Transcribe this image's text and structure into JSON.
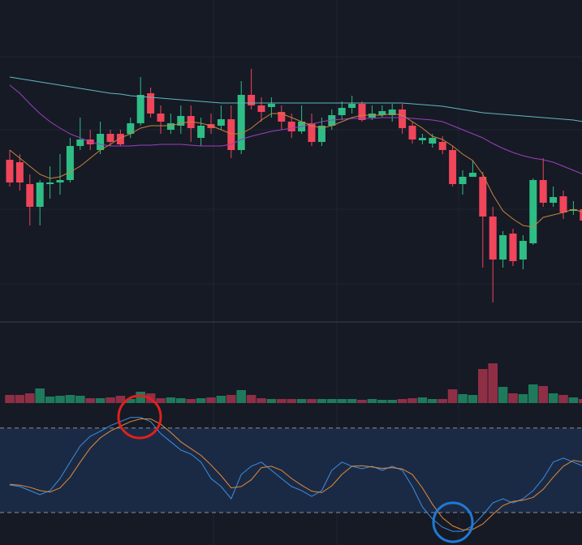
{
  "chart_data": [
    {
      "type": "candlestick",
      "ylim": [
        3,
        400
      ],
      "grid": true,
      "up_color": "#2ebd85",
      "down_color": "#f0455a",
      "open": [
        203,
        200,
        173,
        145,
        173,
        175,
        178,
        220,
        228,
        215,
        235,
        235,
        235,
        248,
        285,
        260,
        240,
        245,
        257,
        230,
        247,
        245,
        253,
        215,
        283,
        270,
        268,
        262,
        250,
        238,
        248,
        225,
        245,
        258,
        267,
        272,
        255,
        258,
        258,
        265,
        245,
        227,
        223,
        225,
        215,
        173,
        182,
        182,
        133,
        80,
        112,
        80,
        100,
        178,
        150,
        158,
        140,
        142
      ],
      "high": [
        215,
        210,
        185,
        178,
        195,
        210,
        230,
        255,
        240,
        250,
        240,
        240,
        255,
        305,
        292,
        270,
        260,
        270,
        270,
        255,
        260,
        270,
        270,
        300,
        315,
        280,
        280,
        270,
        260,
        270,
        260,
        255,
        265,
        275,
        282,
        275,
        270,
        270,
        272,
        272,
        250,
        235,
        235,
        232,
        220,
        190,
        202,
        188,
        145,
        115,
        118,
        110,
        180,
        205,
        170,
        165,
        152,
        152
      ],
      "low": [
        170,
        165,
        122,
        122,
        155,
        160,
        175,
        215,
        215,
        210,
        220,
        220,
        230,
        245,
        255,
        235,
        235,
        235,
        225,
        220,
        235,
        240,
        205,
        210,
        265,
        250,
        255,
        240,
        230,
        235,
        220,
        220,
        240,
        252,
        260,
        250,
        252,
        255,
        250,
        235,
        223,
        222,
        218,
        210,
        170,
        160,
        182,
        70,
        27,
        70,
        72,
        68,
        98,
        145,
        145,
        130,
        135,
        122
      ],
      "close": [
        175,
        175,
        145,
        175,
        175,
        178,
        220,
        228,
        222,
        235,
        225,
        222,
        248,
        283,
        260,
        250,
        248,
        257,
        242,
        245,
        242,
        253,
        215,
        283,
        270,
        262,
        272,
        250,
        238,
        250,
        225,
        245,
        258,
        267,
        272,
        252,
        260,
        263,
        265,
        242,
        228,
        230,
        230,
        215,
        173,
        182,
        187,
        133,
        80,
        110,
        78,
        103,
        178,
        150,
        157,
        138,
        142,
        128
      ],
      "series": [
        {
          "color": "#5fb8c2",
          "values": [
            305,
            303,
            301,
            299,
            297,
            295,
            293,
            291,
            289,
            287,
            285,
            284,
            282,
            281,
            280,
            279,
            278,
            277,
            276,
            275,
            274,
            273,
            273,
            273,
            273,
            273,
            273,
            273,
            273,
            273,
            273,
            273,
            273,
            273,
            273,
            273,
            273,
            273,
            273,
            273,
            272,
            271,
            270,
            269,
            267,
            265,
            263,
            261,
            260,
            259,
            258,
            257,
            256,
            255,
            254,
            253,
            252,
            250
          ]
        },
        {
          "color": "#9c3fc0",
          "values": [
            295,
            285,
            272,
            260,
            250,
            242,
            235,
            230,
            225,
            222,
            220,
            220,
            220,
            221,
            221,
            222,
            222,
            222,
            221,
            220,
            220,
            220,
            222,
            228,
            232,
            235,
            238,
            240,
            242,
            244,
            247,
            250,
            252,
            253,
            254,
            254,
            254,
            255,
            255,
            255,
            254,
            253,
            252,
            250,
            245,
            240,
            235,
            230,
            223,
            217,
            212,
            208,
            205,
            203,
            200,
            195,
            190,
            185
          ]
        },
        {
          "color": "#c8843a",
          "values": [
            215,
            205,
            195,
            185,
            180,
            182,
            188,
            195,
            205,
            215,
            222,
            230,
            235,
            242,
            245,
            245,
            245,
            248,
            250,
            248,
            245,
            240,
            235,
            235,
            242,
            252,
            260,
            260,
            255,
            250,
            245,
            242,
            245,
            250,
            255,
            258,
            258,
            258,
            260,
            258,
            250,
            242,
            232,
            228,
            220,
            210,
            202,
            185,
            160,
            140,
            130,
            122,
            120,
            132,
            135,
            138,
            142,
            138
          ]
        }
      ]
    },
    {
      "type": "bar",
      "ylim": [
        0,
        50
      ],
      "up_color": "#1f7a5c",
      "down_color": "#8e2f46",
      "values": [
        10,
        10,
        12,
        18,
        8,
        9,
        10,
        9,
        6,
        6,
        7,
        9,
        5,
        14,
        12,
        6,
        7,
        6,
        5,
        6,
        7,
        9,
        10,
        16,
        10,
        6,
        5,
        5,
        5,
        5,
        5,
        5,
        5,
        5,
        5,
        4,
        5,
        4,
        4,
        5,
        6,
        7,
        5,
        5,
        17,
        11,
        10,
        42,
        49,
        20,
        12,
        11,
        23,
        21,
        12,
        10,
        7,
        5
      ]
    },
    {
      "type": "line",
      "ylim": [
        -3,
        96
      ],
      "bands": [
        20,
        80
      ],
      "band_color": "#1b2a44",
      "series": [
        {
          "color": "#3a8ee6",
          "values": [
            39.6,
            38.5,
            35.6,
            32.7,
            35.6,
            44.2,
            55.8,
            67.3,
            74.2,
            77.7,
            81.7,
            84.6,
            87.5,
            87.5,
            84.6,
            76,
            70.2,
            64.4,
            61.5,
            55.8,
            44.2,
            38.5,
            29.8,
            47.1,
            52.9,
            55.8,
            50,
            44.2,
            38.5,
            35.6,
            31.5,
            35.6,
            50,
            55.8,
            52.9,
            51.2,
            52.9,
            50,
            52.9,
            50,
            38.5,
            24,
            15.4,
            9.6,
            6.7,
            6.7,
            10.8,
            18.3,
            26.9,
            29.8,
            26.9,
            29.8,
            35.6,
            44.2,
            55.8,
            58.7,
            55.8,
            52.9
          ]
        },
        {
          "color": "#e08a3c",
          "values": [
            40,
            39.5,
            38,
            35.6,
            34.6,
            37.5,
            45.2,
            55.8,
            65.8,
            73.1,
            77.9,
            81.3,
            84.6,
            86.5,
            86.5,
            82.7,
            76.9,
            70.2,
            65.4,
            60.6,
            53.8,
            46.2,
            37.5,
            38.5,
            43.3,
            51.9,
            52.9,
            50,
            44.2,
            39.4,
            35.2,
            34.2,
            39,
            47.1,
            52.9,
            53.3,
            52.3,
            51.4,
            51.9,
            51,
            47.1,
            37.5,
            25.9,
            16.3,
            10.6,
            7.7,
            8.1,
            11.9,
            18.7,
            25,
            27.9,
            28.8,
            30.8,
            36.5,
            45.2,
            52.9,
            57.1,
            55.8
          ]
        }
      ]
    }
  ]
}
